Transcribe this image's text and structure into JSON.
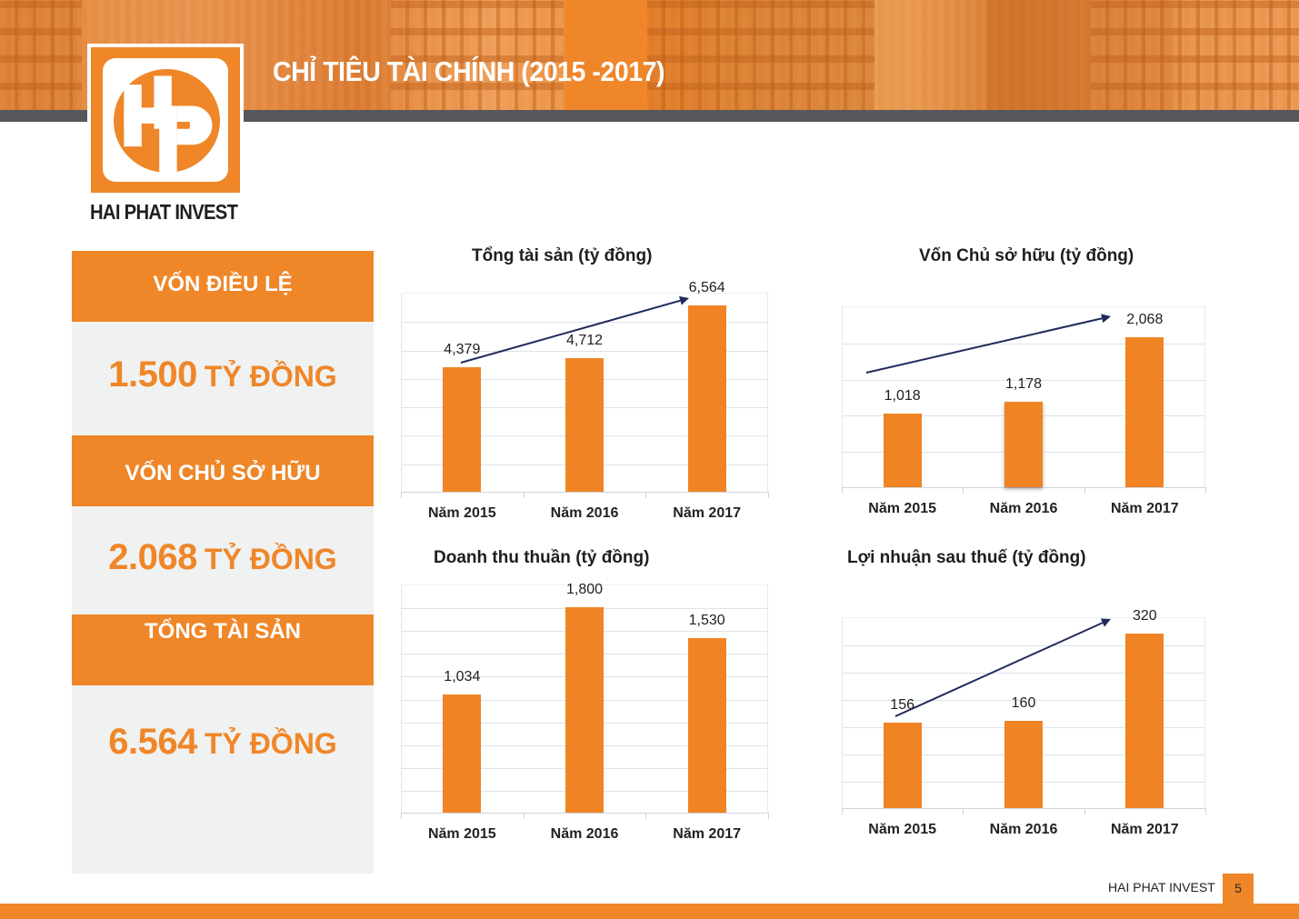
{
  "header": {
    "title": "CHỈ TIÊU TÀI CHÍNH (2015 -2017)"
  },
  "logo": {
    "letters": "HP",
    "caption": "HAI PHAT INVEST"
  },
  "kpis": [
    {
      "label": "VỐN ĐIỀU LỆ",
      "value": "1.500",
      "unit": "TỶ ĐỒNG"
    },
    {
      "label": "VỐN CHỦ SỞ HỮU",
      "value": "2.068",
      "unit": "TỶ ĐỒNG"
    },
    {
      "label": "TỔNG TÀI SẢN",
      "value": "6.564",
      "unit": "TỶ ĐỒNG"
    }
  ],
  "colors": {
    "brand_orange": "#ef8628",
    "bar_orange": "#f08424",
    "header_gray": "#55575b",
    "panel_gray": "#f0f1f1",
    "trend_arrow": "#1f2a5c",
    "gridline": "#dde2ea"
  },
  "chart_data": [
    {
      "type": "bar",
      "title": "Tổng tài sản (tỷ đồng)",
      "categories": [
        "Năm 2015",
        "Năm 2016",
        "Năm 2017"
      ],
      "values": [
        4379,
        4712,
        6564
      ],
      "value_labels": [
        "4,379",
        "4,712",
        "6,564"
      ],
      "xlabel": "",
      "ylabel": "",
      "ylim": [
        0,
        7000
      ],
      "grid": true,
      "gridlines": 7,
      "legend": "none",
      "annotations": [
        "trend arrow from Năm 2015 to Năm 2017"
      ]
    },
    {
      "type": "bar",
      "title": "Vốn Chủ sở hữu (tỷ đồng)",
      "categories": [
        "Năm 2015",
        "Năm 2016",
        "Năm 2017"
      ],
      "values": [
        1018,
        1178,
        2068
      ],
      "value_labels": [
        "1,018",
        "1,178",
        "2,068"
      ],
      "xlabel": "",
      "ylabel": "",
      "ylim": [
        0,
        2500
      ],
      "grid": true,
      "gridlines": 5,
      "legend": "none",
      "annotations": [
        "trend arrow from Năm 2015 to Năm 2017"
      ]
    },
    {
      "type": "bar",
      "title": "Doanh thu thuần (tỷ đồng)",
      "categories": [
        "Năm 2015",
        "Năm 2016",
        "Năm 2017"
      ],
      "values": [
        1034,
        1800,
        1530
      ],
      "value_labels": [
        "1,034",
        "1,800",
        "1,530"
      ],
      "xlabel": "",
      "ylabel": "",
      "ylim": [
        0,
        2000
      ],
      "grid": true,
      "gridlines": 10,
      "legend": "none",
      "annotations": []
    },
    {
      "type": "bar",
      "title": "Lợi nhuận sau thuế (tỷ đồng)",
      "categories": [
        "Năm 2015",
        "Năm 2016",
        "Năm 2017"
      ],
      "values": [
        156,
        160,
        320
      ],
      "value_labels": [
        "156",
        "160",
        "320"
      ],
      "xlabel": "",
      "ylabel": "",
      "ylim": [
        0,
        350
      ],
      "grid": true,
      "gridlines": 7,
      "legend": "none",
      "annotations": [
        "trend arrow from Năm 2015 to Năm 2017"
      ]
    }
  ],
  "footer": {
    "brand": "HAI PHAT INVEST",
    "page_number": "5"
  }
}
